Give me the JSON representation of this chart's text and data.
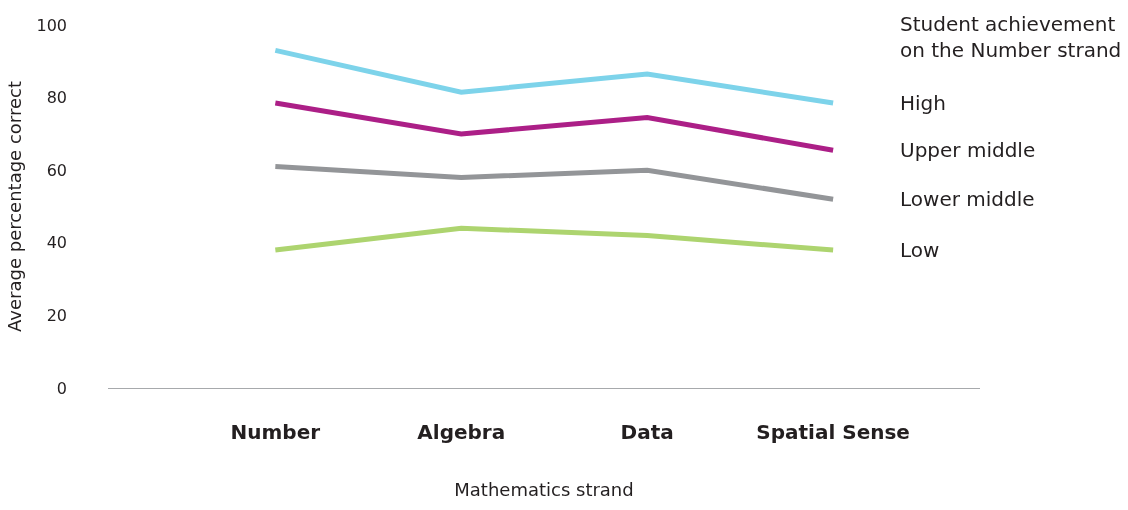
{
  "chart_data": {
    "type": "line",
    "xlabel": "Mathematics strand",
    "ylabel": "Average percentage correct",
    "legend_title": "Student achievement\non the Number strand",
    "categories": [
      "Number",
      "Algebra",
      "Data",
      "Spatial Sense"
    ],
    "series": [
      {
        "name": "High",
        "color": "#7dd3ea",
        "values": [
          93,
          81.5,
          86.5,
          78.5
        ]
      },
      {
        "name": "Upper middle",
        "color": "#ac1f87",
        "values": [
          78.5,
          70,
          74.5,
          65.5
        ]
      },
      {
        "name": "Lower middle",
        "color": "#939598",
        "values": [
          61,
          58,
          60,
          52
        ]
      },
      {
        "name": "Low",
        "color": "#add46f",
        "values": [
          38,
          44,
          42,
          38
        ]
      }
    ],
    "ylim": [
      0,
      100
    ],
    "yticks": [
      0,
      20,
      40,
      60,
      80,
      100
    ],
    "grid": false,
    "legend": "right",
    "marker": "none",
    "line_style": "solid"
  }
}
